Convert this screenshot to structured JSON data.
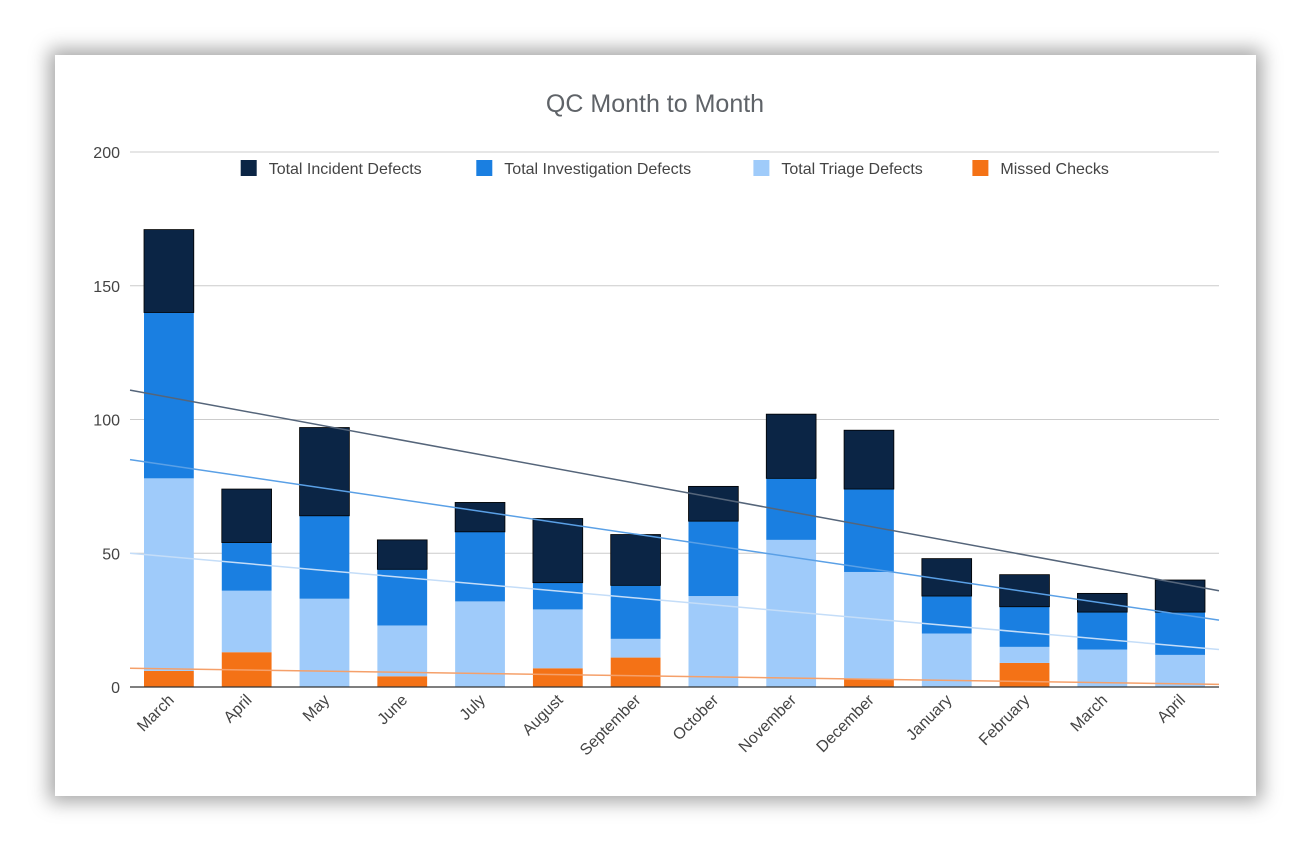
{
  "chart_data": {
    "type": "bar",
    "stacked": true,
    "title": "QC Month to Month",
    "xlabel": "",
    "ylabel": "",
    "ylim": [
      0,
      200
    ],
    "yticks": [
      0,
      50,
      100,
      150,
      200
    ],
    "grid": true,
    "legend_position": "top",
    "categories": [
      "March",
      "April",
      "May",
      "June",
      "July",
      "August",
      "September",
      "October",
      "November",
      "December",
      "January",
      "February",
      "March",
      "April"
    ],
    "series": [
      {
        "name": "Missed Checks",
        "color": "#f47216",
        "values": [
          6,
          13,
          0,
          4,
          0,
          7,
          11,
          0,
          0,
          3,
          0,
          9,
          0,
          0
        ]
      },
      {
        "name": "Total Triage Defects",
        "color": "#9fcbfa",
        "values": [
          72,
          23,
          33,
          19,
          32,
          22,
          7,
          34,
          55,
          40,
          20,
          6,
          14,
          12
        ]
      },
      {
        "name": "Total Investigation Defects",
        "color": "#1a7fe1",
        "values": [
          62,
          18,
          31,
          21,
          26,
          10,
          20,
          28,
          23,
          31,
          14,
          15,
          14,
          16
        ]
      },
      {
        "name": "Total Incident Defects",
        "color": "#0b2545",
        "values": [
          31,
          20,
          33,
          11,
          11,
          24,
          19,
          13,
          24,
          22,
          14,
          12,
          7,
          12
        ]
      }
    ],
    "legend_order": [
      "Total Incident Defects",
      "Total Investigation Defects",
      "Total Triage Defects",
      "Missed Checks"
    ],
    "trendlines": [
      {
        "series": "Total Incident Defects",
        "color": "#55657a",
        "start": 111,
        "end": 36
      },
      {
        "series": "Total Investigation Defects",
        "color": "#5aa0e6",
        "start": 85,
        "end": 25
      },
      {
        "series": "Total Triage Defects",
        "color": "#c4ddf8",
        "start": 50,
        "end": 14
      },
      {
        "series": "Missed Checks",
        "color": "#f5a06a",
        "start": 7,
        "end": 1
      }
    ]
  }
}
